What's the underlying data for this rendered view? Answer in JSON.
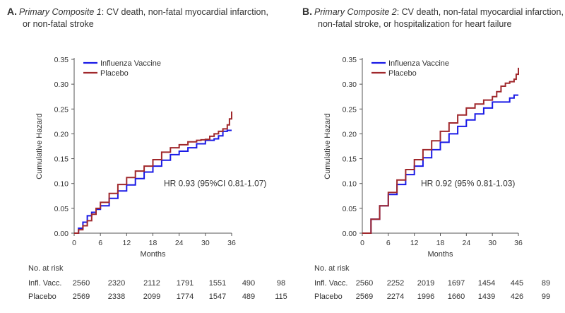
{
  "colors": {
    "vaccine": "#1a1ae6",
    "placebo": "#a0282c",
    "axis": "#555555",
    "text": "#333333"
  },
  "chart_data": [
    {
      "type": "line",
      "panel_letter": "A.",
      "title_prefix": "Primary Composite 1",
      "title_rest_line1": ": CV death, non-fatal myocardial infarction,",
      "title_line2": "or non-fatal stroke",
      "xlabel": "Months",
      "ylabel": "Cumulative Hazard",
      "xlim": [
        0,
        36
      ],
      "ylim": [
        0,
        0.35
      ],
      "xticks": [
        0,
        6,
        12,
        18,
        24,
        30,
        36
      ],
      "yticks": [
        "0.00",
        "0.05",
        "0.10",
        "0.15",
        "0.20",
        "0.25",
        "0.30",
        "0.35"
      ],
      "annotation": "HR 0.93 (95%CI 0.81-1.07)",
      "series": [
        {
          "name": "Influenza Vaccine",
          "color_key": "vaccine",
          "x": [
            0,
            1,
            2,
            3,
            4,
            5,
            6,
            8,
            10,
            12,
            14,
            16,
            18,
            20,
            22,
            24,
            26,
            28,
            30,
            31,
            32,
            33,
            34,
            35,
            36
          ],
          "y": [
            0,
            0.01,
            0.022,
            0.035,
            0.042,
            0.048,
            0.055,
            0.07,
            0.085,
            0.097,
            0.11,
            0.123,
            0.135,
            0.147,
            0.158,
            0.165,
            0.172,
            0.18,
            0.187,
            0.187,
            0.19,
            0.196,
            0.205,
            0.207,
            0.207
          ]
        },
        {
          "name": "Placebo",
          "color_key": "placebo",
          "x": [
            0,
            1,
            2,
            3,
            4,
            5,
            6,
            8,
            10,
            12,
            14,
            16,
            18,
            20,
            22,
            24,
            26,
            28,
            29,
            30,
            31,
            32,
            33,
            34,
            35,
            35.5,
            36
          ],
          "y": [
            0,
            0.007,
            0.015,
            0.025,
            0.038,
            0.05,
            0.062,
            0.08,
            0.098,
            0.112,
            0.125,
            0.135,
            0.148,
            0.163,
            0.172,
            0.178,
            0.184,
            0.187,
            0.188,
            0.189,
            0.195,
            0.2,
            0.205,
            0.21,
            0.218,
            0.23,
            0.245
          ]
        }
      ],
      "risk_table": {
        "header": "No. at risk",
        "rows": [
          {
            "label": "Infl. Vacc.",
            "values": [
              "2560",
              "2320",
              "2112",
              "1791",
              "1551",
              "490",
              "98"
            ]
          },
          {
            "label": "Placebo",
            "values": [
              "2569",
              "2338",
              "2099",
              "1774",
              "1547",
              "489",
              "115"
            ]
          }
        ]
      }
    },
    {
      "type": "line",
      "panel_letter": "B.",
      "title_prefix": "Primary Composite 2",
      "title_rest_line1": ": CV death, non-fatal myocardial infarction,",
      "title_line2": "non-fatal stroke, or hospitalization for heart failure",
      "xlabel": "Months",
      "ylabel": "Cumulative Hazard",
      "xlim": [
        0,
        36
      ],
      "ylim": [
        0,
        0.35
      ],
      "xticks": [
        0,
        6,
        12,
        18,
        24,
        30,
        36
      ],
      "yticks": [
        "0.00",
        "0.05",
        "0.10",
        "0.15",
        "0.20",
        "0.25",
        "0.30",
        "0.35"
      ],
      "annotation": "HR 0.92 (95% 0.81-1.03)",
      "series": [
        {
          "name": "Influenza Vaccine",
          "color_key": "vaccine",
          "x": [
            0,
            2,
            4,
            6,
            8,
            10,
            12,
            14,
            16,
            18,
            20,
            22,
            24,
            26,
            28,
            30,
            32,
            33,
            34,
            35,
            36
          ],
          "y": [
            0,
            0.028,
            0.055,
            0.078,
            0.098,
            0.118,
            0.135,
            0.152,
            0.168,
            0.183,
            0.2,
            0.215,
            0.228,
            0.24,
            0.252,
            0.264,
            0.264,
            0.264,
            0.272,
            0.278,
            0.278
          ]
        },
        {
          "name": "Placebo",
          "color_key": "placebo",
          "x": [
            0,
            2,
            4,
            6,
            8,
            10,
            12,
            14,
            16,
            18,
            20,
            22,
            24,
            26,
            28,
            30,
            31,
            32,
            33,
            34,
            35,
            35.5,
            36
          ],
          "y": [
            0,
            0.028,
            0.055,
            0.082,
            0.107,
            0.128,
            0.148,
            0.168,
            0.186,
            0.205,
            0.222,
            0.238,
            0.252,
            0.26,
            0.268,
            0.275,
            0.285,
            0.296,
            0.302,
            0.305,
            0.31,
            0.32,
            0.333
          ]
        }
      ],
      "risk_table": {
        "header": "No. at risk",
        "rows": [
          {
            "label": "Infl. Vacc.",
            "values": [
              "2560",
              "2252",
              "2019",
              "1697",
              "1454",
              "445",
              "89"
            ]
          },
          {
            "label": "Placebo",
            "values": [
              "2569",
              "2274",
              "1996",
              "1660",
              "1439",
              "426",
              "99"
            ]
          }
        ]
      }
    }
  ]
}
